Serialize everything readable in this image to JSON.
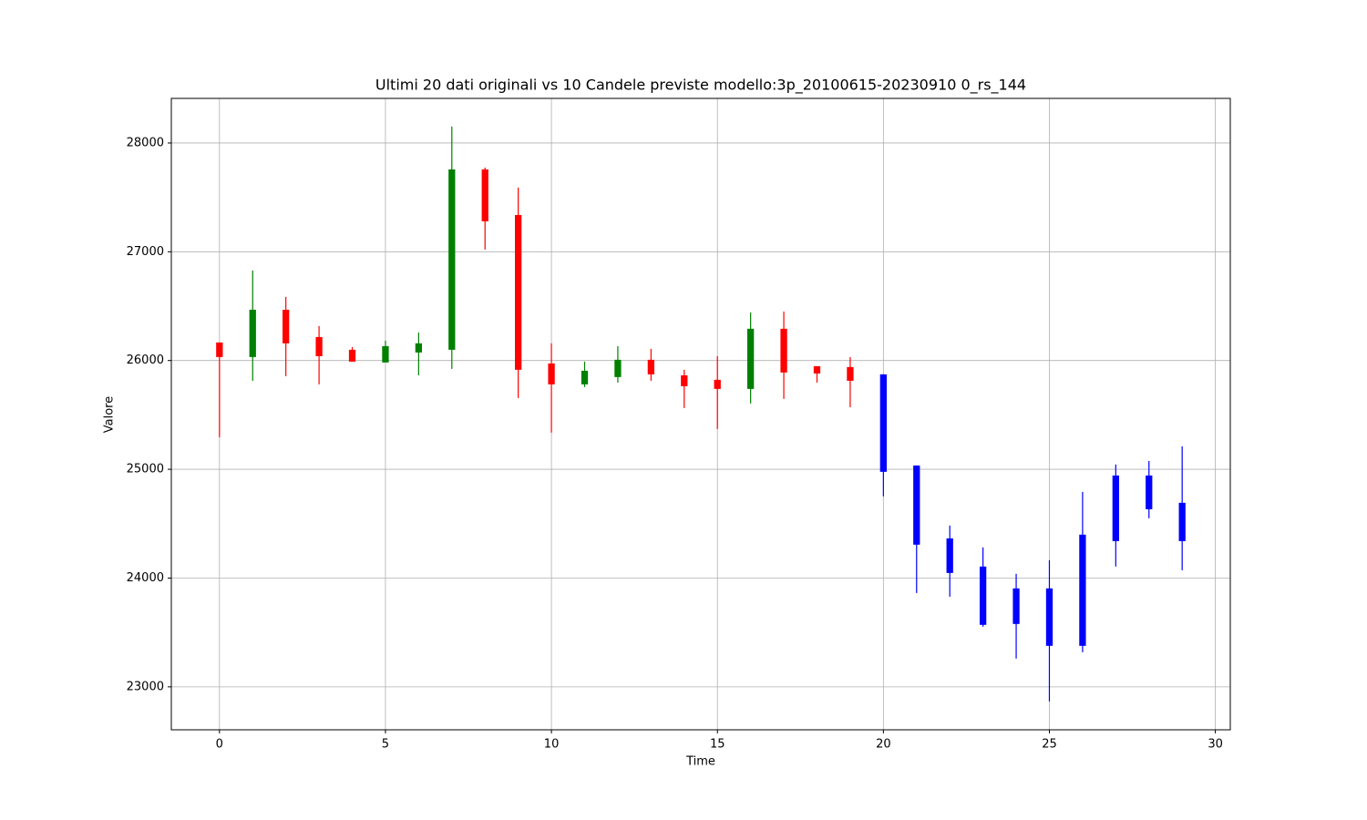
{
  "chart_data": {
    "type": "candlestick",
    "title": "Ultimi 20 dati originali vs 10 Candele previste modello:3p_20100615-20230910 0_rs_144",
    "x_label": "Time",
    "y_label": "Valore",
    "xlim": [
      -1.45,
      30.45
    ],
    "ylim": [
      22605,
      28410
    ],
    "xticks": [
      0,
      5,
      10,
      15,
      20,
      25,
      30
    ],
    "yticks": [
      23000,
      24000,
      25000,
      26000,
      27000,
      28000
    ],
    "grid": true,
    "series": [
      {
        "x": [
          0,
          1,
          2,
          3,
          4,
          5,
          6,
          7,
          8,
          9,
          10,
          11,
          12,
          13,
          14,
          15,
          16,
          17,
          18,
          19
        ],
        "open": [
          26166,
          26032,
          26467,
          26216,
          26099,
          25982,
          26074,
          26099,
          27757,
          27338,
          25973,
          25781,
          25848,
          26007,
          25864,
          25823,
          25739,
          26292,
          25948,
          25940
        ],
        "high": [
          26166,
          26828,
          26585,
          26317,
          26124,
          26183,
          26258,
          28151,
          27774,
          27590,
          26158,
          25990,
          26132,
          26107,
          25915,
          26040,
          26442,
          26451,
          25948,
          26032
        ],
        "low": [
          25295,
          25814,
          25856,
          25781,
          25990,
          25982,
          25864,
          25923,
          27020,
          25655,
          25337,
          25756,
          25797,
          25814,
          25563,
          25370,
          25605,
          25647,
          25797,
          25571
        ],
        "close": [
          26032,
          26467,
          26158,
          26040,
          25990,
          26132,
          26158,
          27757,
          27280,
          25915,
          25781,
          25906,
          26007,
          25873,
          25764,
          25739,
          26292,
          25890,
          25881,
          25814
        ],
        "up_color": "green",
        "down_color": "red"
      },
      {
        "x": [
          20,
          21,
          22,
          23,
          24,
          25,
          26,
          27,
          28,
          29
        ],
        "open": [
          25873,
          25035,
          24365,
          24106,
          23905,
          23905,
          23377,
          24340,
          24633,
          24692
        ],
        "high": [
          25873,
          25035,
          24483,
          24282,
          24039,
          24164,
          24792,
          25044,
          25077,
          25211
        ],
        "low": [
          24751,
          23863,
          23829,
          23553,
          23260,
          22866,
          23318,
          24106,
          24550,
          24072
        ],
        "close": [
          24977,
          24307,
          24047,
          23570,
          23578,
          23377,
          24399,
          24943,
          24943,
          24340
        ],
        "color": "blue"
      }
    ]
  }
}
